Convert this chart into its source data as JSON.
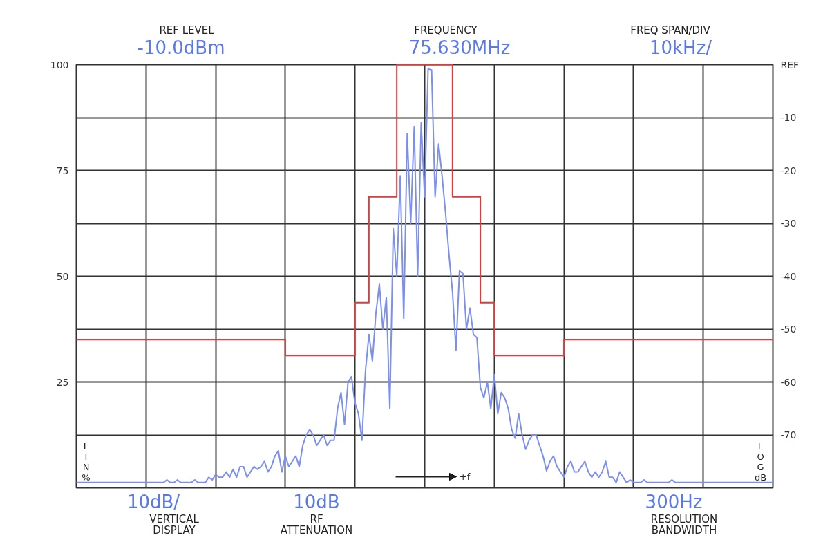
{
  "chart_data": {
    "type": "line",
    "annotations": [
      "REF LEVEL",
      "-10.0dBm",
      "FREQUENCY",
      "75.630MHz",
      "FREQ SPAN/DIV",
      "10kHz/",
      "10dB/",
      "VERTICAL\nDISPLAY",
      "10dB",
      "RF\nATTENUATION",
      "300Hz",
      "RESOLUTION\nBANDWIDTH",
      "LIN%",
      "LOG dB",
      "+f"
    ],
    "categories": [
      null,
      null,
      null,
      null,
      null,
      null,
      null,
      null,
      null,
      null,
      null,
      null,
      null,
      null,
      null,
      null,
      null,
      null,
      null,
      null,
      null,
      null,
      null,
      null,
      null,
      null,
      null,
      null,
      null,
      null,
      null,
      null,
      null,
      null,
      null,
      null,
      null,
      null,
      null,
      null,
      null,
      null,
      null,
      null,
      null,
      null,
      null,
      null,
      null,
      null,
      null,
      null,
      null,
      null,
      null,
      null,
      null,
      null,
      null,
      null,
      null,
      null,
      null,
      null,
      null,
      null,
      null,
      null,
      null,
      null,
      null,
      null,
      null,
      null,
      null,
      null,
      null,
      null,
      null,
      null,
      null,
      null,
      null,
      null,
      null,
      null,
      null,
      null,
      null,
      null,
      null,
      null,
      null,
      null,
      null,
      null,
      null,
      null,
      null,
      null,
      null,
      null,
      null,
      null,
      null,
      null,
      null,
      null,
      null,
      null,
      null,
      null,
      null,
      null,
      null,
      null,
      null,
      null,
      null,
      null,
      null,
      null,
      null,
      null,
      null,
      null,
      null,
      null,
      null,
      null,
      null,
      null,
      null,
      null,
      null,
      null,
      null,
      null,
      null,
      null,
      null,
      null,
      null,
      null,
      null,
      null,
      null,
      null,
      null,
      null,
      null,
      null,
      null,
      null,
      null,
      null,
      null,
      null,
      null,
      null,
      null,
      null,
      null,
      null,
      null,
      null,
      null,
      null,
      null,
      null,
      null,
      null,
      null,
      null,
      null,
      null,
      null,
      null,
      null,
      null,
      null,
      null,
      null,
      null,
      null,
      null,
      null,
      null,
      null,
      null,
      null,
      null,
      null,
      null,
      null,
      null,
      null,
      null,
      null,
      null,
      null
    ],
    "ylim": [
      0,
      100
    ],
    "yticks": [
      25,
      50,
      75,
      100
    ],
    "y2lim": [
      -80,
      0
    ],
    "y2ticks": [
      {
        "value": 0,
        "label": "REF"
      },
      -10,
      -20,
      -30,
      -40,
      -50,
      -60,
      -70
    ],
    "grid": true,
    "marker": "none",
    "line_style": "solid",
    "series": [
      {
        "type": "step",
        "color": "#e03a3a",
        "axis": "y2",
        "values": [
          -52,
          -52,
          -52,
          -52,
          -52,
          -52,
          -52,
          -52,
          -52,
          -52,
          -52,
          -52,
          -52,
          -52,
          -52,
          -52,
          -52,
          -52,
          -52,
          -52,
          -52,
          -52,
          -52,
          -52,
          -52,
          -52,
          -52,
          -52,
          -52,
          -52,
          -52,
          -52,
          -52,
          -52,
          -52,
          -52,
          -52,
          -52,
          -52,
          -52,
          -52,
          -52,
          -52,
          -52,
          -52,
          -52,
          -52,
          -52,
          -52,
          -52,
          -52,
          -52,
          -52,
          -52,
          -52,
          -52,
          -52,
          -52,
          -52,
          -52,
          -55,
          -55,
          -55,
          -55,
          -55,
          -55,
          -55,
          -55,
          -55,
          -55,
          -55,
          -55,
          -55,
          -55,
          -55,
          -55,
          -55,
          -55,
          -55,
          -55,
          -45,
          -45,
          -45,
          -45,
          -25,
          -25,
          -25,
          -25,
          -25,
          -25,
          -25,
          -25,
          0,
          0,
          0,
          0,
          0,
          0,
          0,
          0,
          0,
          0,
          0,
          0,
          0,
          0,
          0,
          0,
          -25,
          -25,
          -25,
          -25,
          -25,
          -25,
          -25,
          -25,
          -45,
          -45,
          -45,
          -45,
          -55,
          -55,
          -55,
          -55,
          -55,
          -55,
          -55,
          -55,
          -55,
          -55,
          -55,
          -55,
          -55,
          -55,
          -55,
          -55,
          -55,
          -55,
          -55,
          -55,
          -52,
          -52,
          -52,
          -52,
          -52,
          -52,
          -52,
          -52,
          -52,
          -52,
          -52,
          -52,
          -52,
          -52,
          -52,
          -52,
          -52,
          -52,
          -52,
          -52,
          -52,
          -52,
          -52,
          -52,
          -52,
          -52,
          -52,
          -52,
          -52,
          -52,
          -52,
          -52,
          -52,
          -52,
          -52,
          -52,
          -52,
          -52,
          -52,
          -52,
          -52,
          -52,
          -52,
          -52,
          -52,
          -52,
          -52,
          -52,
          -52,
          -52,
          -52,
          -52,
          -52,
          -52,
          -52,
          -52,
          -52,
          -52,
          -52,
          -52,
          -52
        ]
      },
      {
        "color": "#7b8ff0",
        "axis": "y2",
        "values": [
          -79,
          -79,
          -79,
          -79,
          -79,
          -79,
          -79,
          -79,
          -79,
          -79,
          -79,
          -79,
          -79,
          -79,
          -79,
          -79,
          -79,
          -79,
          -79,
          -79,
          -79,
          -79,
          -79,
          -79,
          -79,
          -79,
          -78.5,
          -79,
          -79,
          -78.5,
          -79,
          -79,
          -79,
          -79,
          -78.5,
          -79,
          -79,
          -79,
          -78,
          -78.5,
          -77.5,
          -78,
          -78,
          -77,
          -78,
          -76.5,
          -78,
          -76,
          -76,
          -78,
          -77,
          -76,
          -76.5,
          -76,
          -75,
          -77,
          -76,
          -74,
          -73,
          -77,
          -74,
          -76,
          -75,
          -74,
          -76,
          -72,
          -70,
          -69,
          -70,
          -72,
          -71,
          -70,
          -72,
          -71,
          -71,
          -65,
          -62,
          -68,
          -60,
          -59,
          -64,
          -66,
          -71,
          -58,
          -51,
          -56,
          -47,
          -41.5,
          -50,
          -44,
          -65,
          -31,
          -40,
          -21,
          -48,
          -13,
          -30,
          -11.7,
          -40,
          -11,
          -25,
          -0.8,
          -1,
          -25,
          -15,
          -21,
          -28,
          -36,
          -43,
          -54,
          -39,
          -39.5,
          -50,
          -46,
          -51,
          -51.6,
          -61,
          -63,
          -60,
          -65,
          -58.6,
          -66,
          -62,
          -63,
          -65,
          -69,
          -70.6,
          -66,
          -70,
          -72.7,
          -71,
          -70,
          -70,
          -72,
          -74,
          -76.8,
          -75,
          -74,
          -76,
          -77,
          -78,
          -76,
          -75,
          -77,
          -77,
          -76,
          -75,
          -77,
          -78,
          -77,
          -78,
          -77,
          -75,
          -78,
          -78,
          -79,
          -77,
          -78,
          -79,
          -78.5,
          -79,
          -79,
          -79,
          -78.5,
          -79,
          -79,
          -79,
          -79,
          -79,
          -79,
          -79,
          -78.5,
          -79,
          -79,
          -79,
          -79,
          -79,
          -79,
          -79,
          -79,
          -79,
          -79,
          -79,
          -79,
          -79,
          -79,
          -79,
          -79,
          -79,
          -79,
          -79,
          -79,
          -79,
          -79,
          -79,
          -79,
          -79,
          -79,
          -79,
          -79,
          -79
        ]
      }
    ]
  }
}
